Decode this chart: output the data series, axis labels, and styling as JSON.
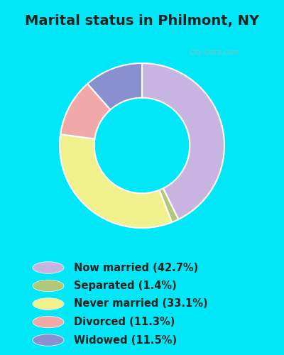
{
  "title": "Marital status in Philmont, NY",
  "categories": [
    "Now married",
    "Separated",
    "Never married",
    "Divorced",
    "Widowed"
  ],
  "values": [
    42.7,
    1.4,
    33.1,
    11.3,
    11.5
  ],
  "colors": [
    "#c8b4e0",
    "#b0c878",
    "#f0f08c",
    "#f0a8a8",
    "#8890d0"
  ],
  "legend_labels": [
    "Now married (42.7%)",
    "Separated (1.4%)",
    "Never married (33.1%)",
    "Divorced (11.3%)",
    "Widowed (11.5%)"
  ],
  "bg_cyan": "#00e8f8",
  "chart_bg_color": "#d0ede0",
  "title_fontsize": 14,
  "watermark": "City-Data.com",
  "donut_width": 0.42,
  "start_angle": 90,
  "title_color": "#222222",
  "legend_text_color": "#222222",
  "legend_fontsize": 10.5
}
